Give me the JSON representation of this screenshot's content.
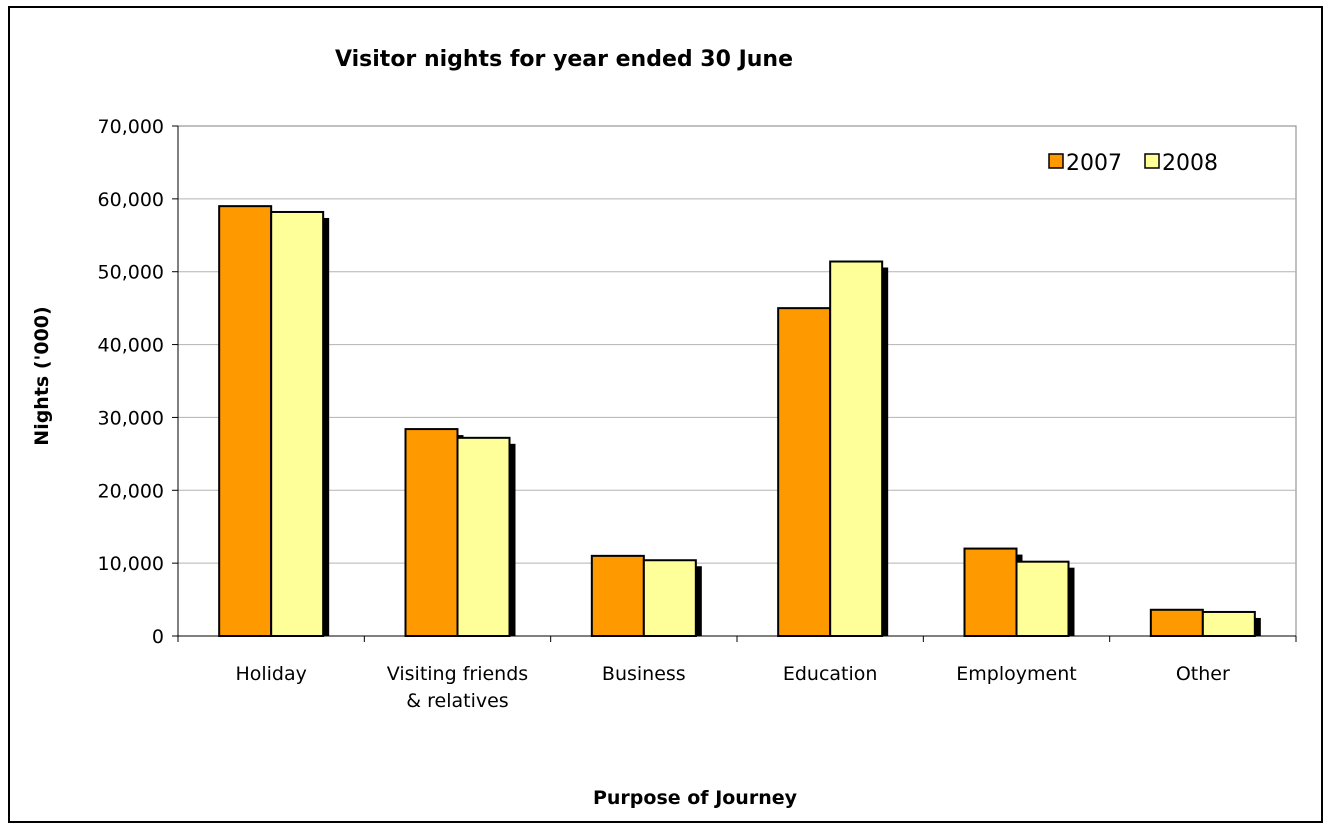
{
  "chart_data": {
    "type": "bar",
    "title": "Visitor nights for year ended 30 June",
    "xlabel": "Purpose of Journey",
    "ylabel": "Nights ('000)",
    "categories": [
      [
        "Holiday"
      ],
      [
        "Visiting friends",
        "& relatives"
      ],
      [
        "Business"
      ],
      [
        "Education"
      ],
      [
        "Employment"
      ],
      [
        "Other"
      ]
    ],
    "series": [
      {
        "name": "2007",
        "color": "#ff9900",
        "values": [
          59000,
          28400,
          11000,
          45000,
          12000,
          3600
        ]
      },
      {
        "name": "2008",
        "color": "#ffff99",
        "values": [
          58200,
          27200,
          10400,
          51400,
          10200,
          3300
        ]
      }
    ],
    "ylim": [
      0,
      70000
    ],
    "yticks": [
      "0",
      "10,000",
      "20,000",
      "30,000",
      "40,000",
      "50,000",
      "60,000",
      "70,000"
    ],
    "grid": true,
    "legend_position": "top-right",
    "bar_shadow": true
  }
}
